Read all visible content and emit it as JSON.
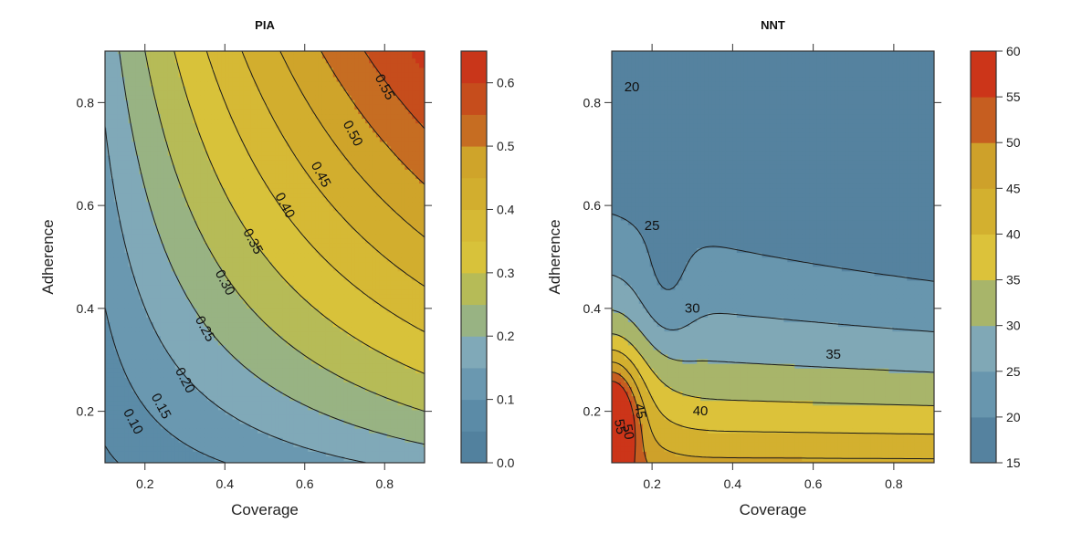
{
  "chart_data": [
    {
      "type": "heatmap",
      "subtype": "filled-contour",
      "title": "PIA",
      "xlabel": "Coverage",
      "ylabel": "Adherence",
      "xlim": [
        0.1,
        0.9
      ],
      "ylim": [
        0.1,
        0.9
      ],
      "xticks": [
        0.2,
        0.4,
        0.6,
        0.8
      ],
      "xtick_labels": [
        "0.2",
        "0.4",
        "0.6",
        "0.8"
      ],
      "yticks": [
        0.2,
        0.4,
        0.6,
        0.8
      ],
      "ytick_labels": [
        "0.2",
        "0.4",
        "0.6",
        "0.8"
      ],
      "levels": [
        0.0,
        0.05,
        0.1,
        0.15,
        0.2,
        0.25,
        0.3,
        0.35,
        0.4,
        0.45,
        0.5,
        0.55,
        0.6,
        0.65
      ],
      "colorbar_ticks": [
        0.0,
        0.1,
        0.2,
        0.3,
        0.4,
        0.5,
        0.6
      ],
      "colorbar_tick_labels": [
        "0.0",
        "0.1",
        "0.2",
        "0.3",
        "0.4",
        "0.5",
        "0.6"
      ],
      "band_colors": [
        "#52819e",
        "#5b8ba7",
        "#6a98b0",
        "#80a9b8",
        "#98b383",
        "#b6bb57",
        "#d8c23a",
        "#d6b935",
        "#d2ae2e",
        "#cfa42a",
        "#c66d22",
        "#c64d1c",
        "#c9361a"
      ],
      "contour_lines": [
        0.05,
        0.1,
        0.15,
        0.2,
        0.25,
        0.3,
        0.35,
        0.4,
        0.45,
        0.5,
        0.55
      ],
      "contour_labels": [
        {
          "text": "0.10",
          "x": 0.17,
          "y": 0.18
        },
        {
          "text": "0.15",
          "x": 0.24,
          "y": 0.21
        },
        {
          "text": "0.20",
          "x": 0.3,
          "y": 0.26
        },
        {
          "text": "0.25",
          "x": 0.35,
          "y": 0.36
        },
        {
          "text": "0.30",
          "x": 0.4,
          "y": 0.45
        },
        {
          "text": "0.35",
          "x": 0.47,
          "y": 0.53
        },
        {
          "text": "0.40",
          "x": 0.55,
          "y": 0.6
        },
        {
          "text": "0.45",
          "x": 0.64,
          "y": 0.66
        },
        {
          "text": "0.50",
          "x": 0.72,
          "y": 0.74
        },
        {
          "text": "0.55",
          "x": 0.8,
          "y": 0.83
        }
      ]
    },
    {
      "type": "heatmap",
      "subtype": "filled-contour",
      "title": "NNT",
      "xlabel": "Coverage",
      "ylabel": "Adherence",
      "xlim": [
        0.1,
        0.9
      ],
      "ylim": [
        0.1,
        0.9
      ],
      "xticks": [
        0.2,
        0.4,
        0.6,
        0.8
      ],
      "xtick_labels": [
        "0.2",
        "0.4",
        "0.6",
        "0.8"
      ],
      "yticks": [
        0.2,
        0.4,
        0.6,
        0.8
      ],
      "ytick_labels": [
        "0.2",
        "0.4",
        "0.6",
        "0.8"
      ],
      "levels": [
        15,
        20,
        25,
        30,
        35,
        40,
        45,
        50,
        55,
        60
      ],
      "colorbar_ticks": [
        15,
        20,
        25,
        30,
        35,
        40,
        45,
        50,
        55,
        60
      ],
      "colorbar_tick_labels": [
        "15",
        "20",
        "25",
        "30",
        "35",
        "40",
        "45",
        "50",
        "55",
        "60"
      ],
      "band_colors": [
        "#55829f",
        "#6896ae",
        "#80a8b6",
        "#a8b56a",
        "#dcc23a",
        "#d3b02f",
        "#cea12a",
        "#c65e20",
        "#cc3519"
      ],
      "contour_lines": [
        20,
        25,
        30,
        35,
        40,
        45,
        50,
        55
      ],
      "contour_labels": [
        {
          "text": "20",
          "x": 0.15,
          "y": 0.83
        },
        {
          "text": "25",
          "x": 0.2,
          "y": 0.56
        },
        {
          "text": "30",
          "x": 0.3,
          "y": 0.4
        },
        {
          "text": "35",
          "x": 0.65,
          "y": 0.31
        },
        {
          "text": "40",
          "x": 0.32,
          "y": 0.2
        },
        {
          "text": "45",
          "x": 0.17,
          "y": 0.2
        },
        {
          "text": "50",
          "x": 0.14,
          "y": 0.16
        },
        {
          "text": "55",
          "x": 0.12,
          "y": 0.17
        }
      ]
    }
  ]
}
